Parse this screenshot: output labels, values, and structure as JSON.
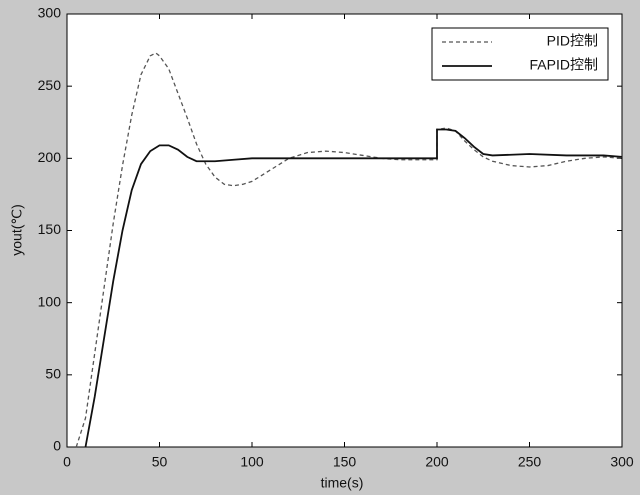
{
  "chart_data": {
    "type": "line",
    "xlabel": "time(s)",
    "ylabel": "yout(℃)",
    "xlim": [
      0,
      300
    ],
    "ylim": [
      0,
      300
    ],
    "xticks": [
      0,
      50,
      100,
      150,
      200,
      250,
      300
    ],
    "yticks": [
      0,
      50,
      100,
      150,
      200,
      250,
      300
    ],
    "legend": "upper right",
    "series": [
      {
        "name": "PID控制",
        "color": "#555555",
        "dashed": true,
        "x": [
          5,
          10,
          15,
          20,
          25,
          30,
          35,
          40,
          45,
          48,
          50,
          55,
          60,
          65,
          70,
          75,
          80,
          85,
          90,
          95,
          100,
          110,
          120,
          130,
          140,
          150,
          160,
          170,
          180,
          190,
          200,
          200,
          205,
          210,
          215,
          220,
          225,
          230,
          240,
          250,
          260,
          270,
          280,
          290,
          300
        ],
        "values": [
          0,
          20,
          65,
          110,
          155,
          195,
          230,
          258,
          271,
          273,
          271,
          262,
          245,
          228,
          210,
          196,
          187,
          182,
          181,
          182,
          184,
          192,
          200,
          204,
          205,
          204,
          202,
          200,
          199,
          199,
          199,
          220,
          221,
          219,
          212,
          206,
          201,
          198,
          195,
          194,
          195,
          198,
          200,
          201,
          200
        ]
      },
      {
        "name": "FAPID控制",
        "color": "#111111",
        "dashed": false,
        "x": [
          10,
          15,
          20,
          25,
          30,
          35,
          40,
          45,
          50,
          55,
          60,
          65,
          70,
          80,
          90,
          100,
          150,
          200,
          200,
          205,
          210,
          215,
          220,
          225,
          230,
          250,
          270,
          290,
          300
        ],
        "values": [
          0,
          35,
          75,
          115,
          150,
          178,
          196,
          205,
          209,
          209,
          206,
          201,
          198,
          198,
          199,
          200,
          200,
          200,
          220,
          220,
          219,
          214,
          208,
          203,
          202,
          203,
          202,
          202,
          201
        ]
      }
    ]
  }
}
